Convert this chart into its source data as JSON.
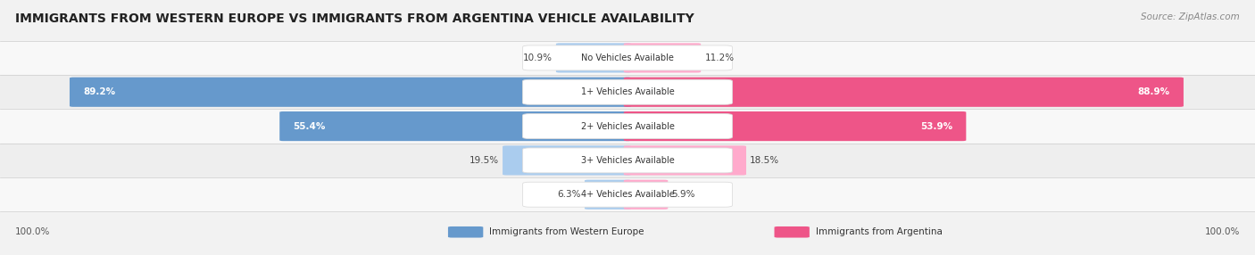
{
  "title": "IMMIGRANTS FROM WESTERN EUROPE VS IMMIGRANTS FROM ARGENTINA VEHICLE AVAILABILITY",
  "source": "Source: ZipAtlas.com",
  "categories": [
    "No Vehicles Available",
    "1+ Vehicles Available",
    "2+ Vehicles Available",
    "3+ Vehicles Available",
    "4+ Vehicles Available"
  ],
  "western_europe": [
    10.9,
    89.2,
    55.4,
    19.5,
    6.3
  ],
  "argentina": [
    11.2,
    88.9,
    53.9,
    18.5,
    5.9
  ],
  "color_blue_dark": "#6699CC",
  "color_blue_light": "#AACCEE",
  "color_pink_dark": "#EE5588",
  "color_pink_light": "#FFAACC",
  "row_bg_light": "#F8F8F8",
  "row_bg_dark": "#EEEEEE",
  "max_val": 100.0,
  "figsize": [
    14.06,
    2.86
  ],
  "dpi": 100,
  "bar_threshold": 40.0
}
